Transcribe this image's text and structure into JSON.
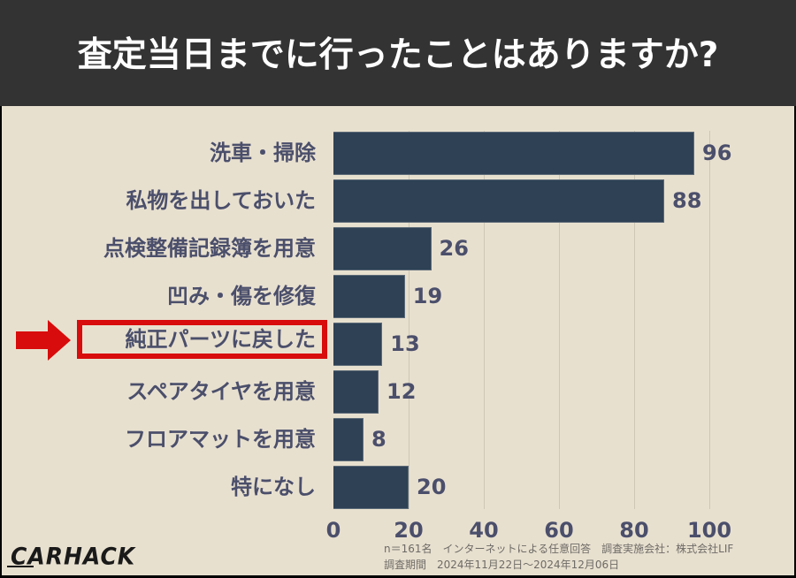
{
  "header": {
    "title": "査定当日までに行ったことはありますか?"
  },
  "chart_data": {
    "type": "bar",
    "orientation": "horizontal",
    "title": "査定当日までに行ったことはありますか?",
    "categories": [
      "洗車・掃除",
      "私物を出しておいた",
      "点検整備記録簿を用意",
      "凹み・傷を修復",
      "純正パーツに戻した",
      "スペアタイヤを用意",
      "フロアマットを用意",
      "特になし"
    ],
    "values": [
      96,
      88,
      26,
      19,
      13,
      12,
      8,
      20
    ],
    "value_labels": [
      "96",
      "88",
      "26",
      "19",
      "13",
      "12",
      "8",
      "20"
    ],
    "xlabel": "",
    "ylabel": "",
    "xlim": [
      0,
      100
    ],
    "x_ticks": [
      "0",
      "20",
      "40",
      "60",
      "80",
      "100"
    ],
    "grid": "vertical",
    "highlighted_category": "純正パーツに戻した",
    "colors": {
      "bar": "#2e4155",
      "label": "#4b4f6b",
      "highlight": "#d80c0c",
      "background": "#e8e0cf",
      "header": "#333333"
    }
  },
  "footnote": {
    "line1": "n＝161名　インターネットによる任意回答　調査実施会社：株式会社LIF",
    "line2": "調査期間　2024年11月22日〜2024年12月06日"
  },
  "logo": {
    "text": "CARHACK"
  }
}
